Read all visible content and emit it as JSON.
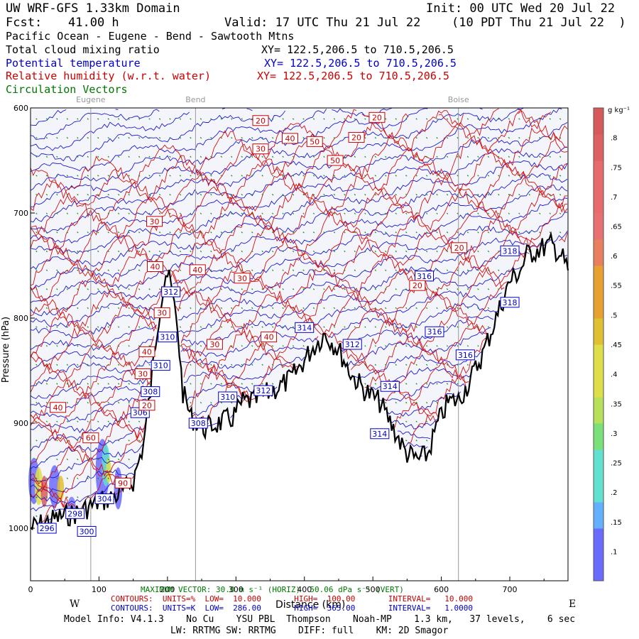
{
  "header": {
    "domain_title": "UW WRF-GFS 1.33km Domain",
    "init": "Init: 00 UTC Wed 20 Jul 22",
    "fcst_label": "Fcst:",
    "fcst_hours": "41.00 h",
    "valid": "Valid: 17 UTC Thu 21 Jul 22",
    "valid_local": "(10 PDT Thu 21 Jul 22  )",
    "region": "Pacific Ocean - Eugene - Bend - Sawtooth Mtns"
  },
  "fields": [
    {
      "name": "Total cloud mixing ratio",
      "xy": "XY= 122.5,206.5 to 710.5,206.5",
      "color": "#000000"
    },
    {
      "name": "Potential temperature",
      "xy": "XY= 122.5,206.5 to 710.5,206.5",
      "color": "#0000cc"
    },
    {
      "name": "Relative humidity (w.r.t. water)",
      "xy": "XY= 122.5,206.5 to 710.5,206.5",
      "color": "#cc0000"
    },
    {
      "name": "Circulation Vectors",
      "xy": "",
      "color": "#007700"
    }
  ],
  "chart_data": {
    "type": "cross-section",
    "xlabel": "Distance (km)",
    "ylabel": "Pressure (hPa)",
    "x_range": [
      0,
      785
    ],
    "y_range_hPa": [
      1050,
      600
    ],
    "x_ticks": [
      "0",
      "100",
      "200",
      "300",
      "400",
      "500",
      "600",
      "700"
    ],
    "y_ticks": [
      "600",
      "700",
      "800",
      "900",
      "1000"
    ],
    "left_end": "W",
    "right_end": "E",
    "locations": [
      {
        "name": "Eugene",
        "km": 88
      },
      {
        "name": "Bend",
        "km": 241
      },
      {
        "name": "Boise",
        "km": 625
      }
    ],
    "terrain_surface_hPa": [
      [
        0,
        1000
      ],
      [
        40,
        990
      ],
      [
        70,
        985
      ],
      [
        100,
        975
      ],
      [
        130,
        968
      ],
      [
        150,
        955
      ],
      [
        165,
        920
      ],
      [
        175,
        870
      ],
      [
        183,
        820
      ],
      [
        190,
        785
      ],
      [
        198,
        755
      ],
      [
        205,
        770
      ],
      [
        215,
        810
      ],
      [
        222,
        870
      ],
      [
        235,
        895
      ],
      [
        255,
        905
      ],
      [
        275,
        900
      ],
      [
        295,
        895
      ],
      [
        310,
        880
      ],
      [
        330,
        878
      ],
      [
        350,
        870
      ],
      [
        365,
        865
      ],
      [
        380,
        858
      ],
      [
        395,
        845
      ],
      [
        410,
        830
      ],
      [
        430,
        815
      ],
      [
        450,
        830
      ],
      [
        470,
        855
      ],
      [
        490,
        870
      ],
      [
        510,
        880
      ],
      [
        530,
        905
      ],
      [
        548,
        928
      ],
      [
        565,
        935
      ],
      [
        580,
        930
      ],
      [
        595,
        900
      ],
      [
        610,
        880
      ],
      [
        625,
        878
      ],
      [
        640,
        862
      ],
      [
        660,
        835
      ],
      [
        680,
        800
      ],
      [
        700,
        765
      ],
      [
        715,
        755
      ],
      [
        725,
        740
      ],
      [
        740,
        735
      ],
      [
        760,
        730
      ],
      [
        775,
        740
      ],
      [
        785,
        755
      ]
    ],
    "theta_contour_labels": [
      "296",
      "298",
      "300",
      "304",
      "306",
      "308",
      "308",
      "310",
      "310",
      "310",
      "312",
      "312",
      "312",
      "314",
      "314",
      "314",
      "316",
      "316",
      "316",
      "318",
      "318"
    ],
    "rh_contour_labels": [
      "20",
      "20",
      "20",
      "20",
      "20",
      "20",
      "30",
      "30",
      "30",
      "30",
      "30",
      "30",
      "40",
      "40",
      "40",
      "40",
      "40",
      "40",
      "50",
      "50",
      "60",
      "90"
    ],
    "cloud_colorbar": {
      "units": "g kg⁻¹",
      "ticks": [
        ".1",
        ".15",
        ".2",
        ".25",
        ".3",
        ".35",
        ".4",
        ".45",
        ".5",
        ".55",
        ".6",
        ".65",
        ".7",
        ".75",
        ".8"
      ],
      "range": [
        0.05,
        0.85
      ],
      "low_color": "#6a6aff",
      "high_color": "#d75a5a"
    },
    "footer": {
      "max_vector": "MAXIMUM VECTOR: 30.0 m s⁻¹ (HORIZ)  50.06 dPa s⁻¹ (VERT)",
      "rh_contours": "CONTOURS:  UNITS=%  LOW=  10.000       HIGH=  100.00       INTERVAL=   10.000",
      "theta_contours": "CONTOURS:  UNITS=K  LOW=  286.00       HIGH=  365.00       INTERVAL=   1.0000",
      "model_info": "Model Info: V4.1.3    No Cu    YSU PBL  Thompson    Noah-MP    1.3 km,   37 levels,    6 sec",
      "model_info2": "LW: RRTMG SW: RRTMG    DIFF: full    KM: 2D Smagor"
    }
  }
}
